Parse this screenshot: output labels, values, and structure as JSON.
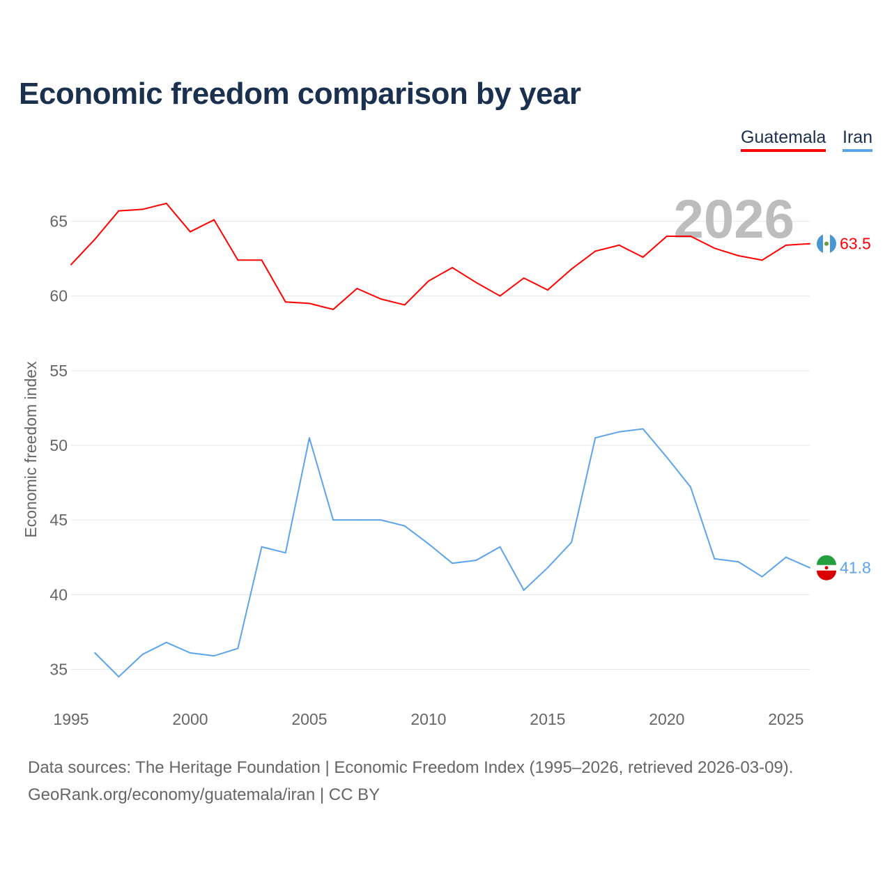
{
  "title": "Economic freedom comparison by year",
  "year_overlay": "2026",
  "footer": {
    "line1": "Data sources: The Heritage Foundation | Economic Freedom Index (1995–2026, retrieved 2026-03-09).",
    "line2": "GeoRank.org/economy/guatemala/iran | CC BY"
  },
  "chart_data": {
    "type": "line",
    "title": "Economic freedom comparison by year",
    "xlabel": "",
    "ylabel": "Economic freedom index",
    "xlim": [
      1995,
      2026
    ],
    "ylim": [
      32.5,
      67.5
    ],
    "xticks": [
      1995,
      2000,
      2005,
      2010,
      2015,
      2020,
      2025
    ],
    "yticks": [
      35,
      40,
      45,
      50,
      55,
      60,
      65
    ],
    "grid": true,
    "legend": "top-right",
    "series": [
      {
        "name": "Guatemala",
        "color": "#ff0000",
        "end_label": "63.5",
        "x": [
          1995,
          1996,
          1997,
          1998,
          1999,
          2000,
          2001,
          2002,
          2003,
          2004,
          2005,
          2006,
          2007,
          2008,
          2009,
          2010,
          2011,
          2012,
          2013,
          2014,
          2015,
          2016,
          2017,
          2018,
          2019,
          2020,
          2021,
          2022,
          2023,
          2024,
          2025,
          2026
        ],
        "values": [
          62.1,
          63.8,
          65.7,
          65.8,
          66.2,
          64.3,
          65.1,
          62.4,
          62.4,
          59.6,
          59.5,
          59.1,
          60.5,
          59.8,
          59.4,
          61.0,
          61.9,
          60.9,
          60.0,
          61.2,
          60.4,
          61.8,
          63.0,
          63.4,
          62.6,
          64.0,
          64.0,
          63.2,
          62.7,
          62.4,
          63.4,
          63.5
        ]
      },
      {
        "name": "Iran",
        "color": "#5ba4ec",
        "end_label": "41.8",
        "x": [
          1996,
          1997,
          1998,
          1999,
          2000,
          2001,
          2002,
          2003,
          2004,
          2005,
          2006,
          2007,
          2008,
          2009,
          2010,
          2011,
          2012,
          2013,
          2014,
          2015,
          2016,
          2017,
          2018,
          2019,
          2020,
          2021,
          2022,
          2023,
          2024,
          2025,
          2026
        ],
        "values": [
          36.1,
          34.5,
          36.0,
          36.8,
          36.1,
          35.9,
          36.4,
          43.2,
          42.8,
          50.5,
          45.0,
          45.0,
          45.0,
          44.6,
          43.4,
          42.1,
          42.3,
          43.2,
          40.3,
          41.8,
          43.5,
          50.5,
          50.9,
          51.1,
          49.2,
          47.2,
          42.4,
          42.2,
          41.2,
          42.5,
          41.8
        ]
      }
    ]
  }
}
